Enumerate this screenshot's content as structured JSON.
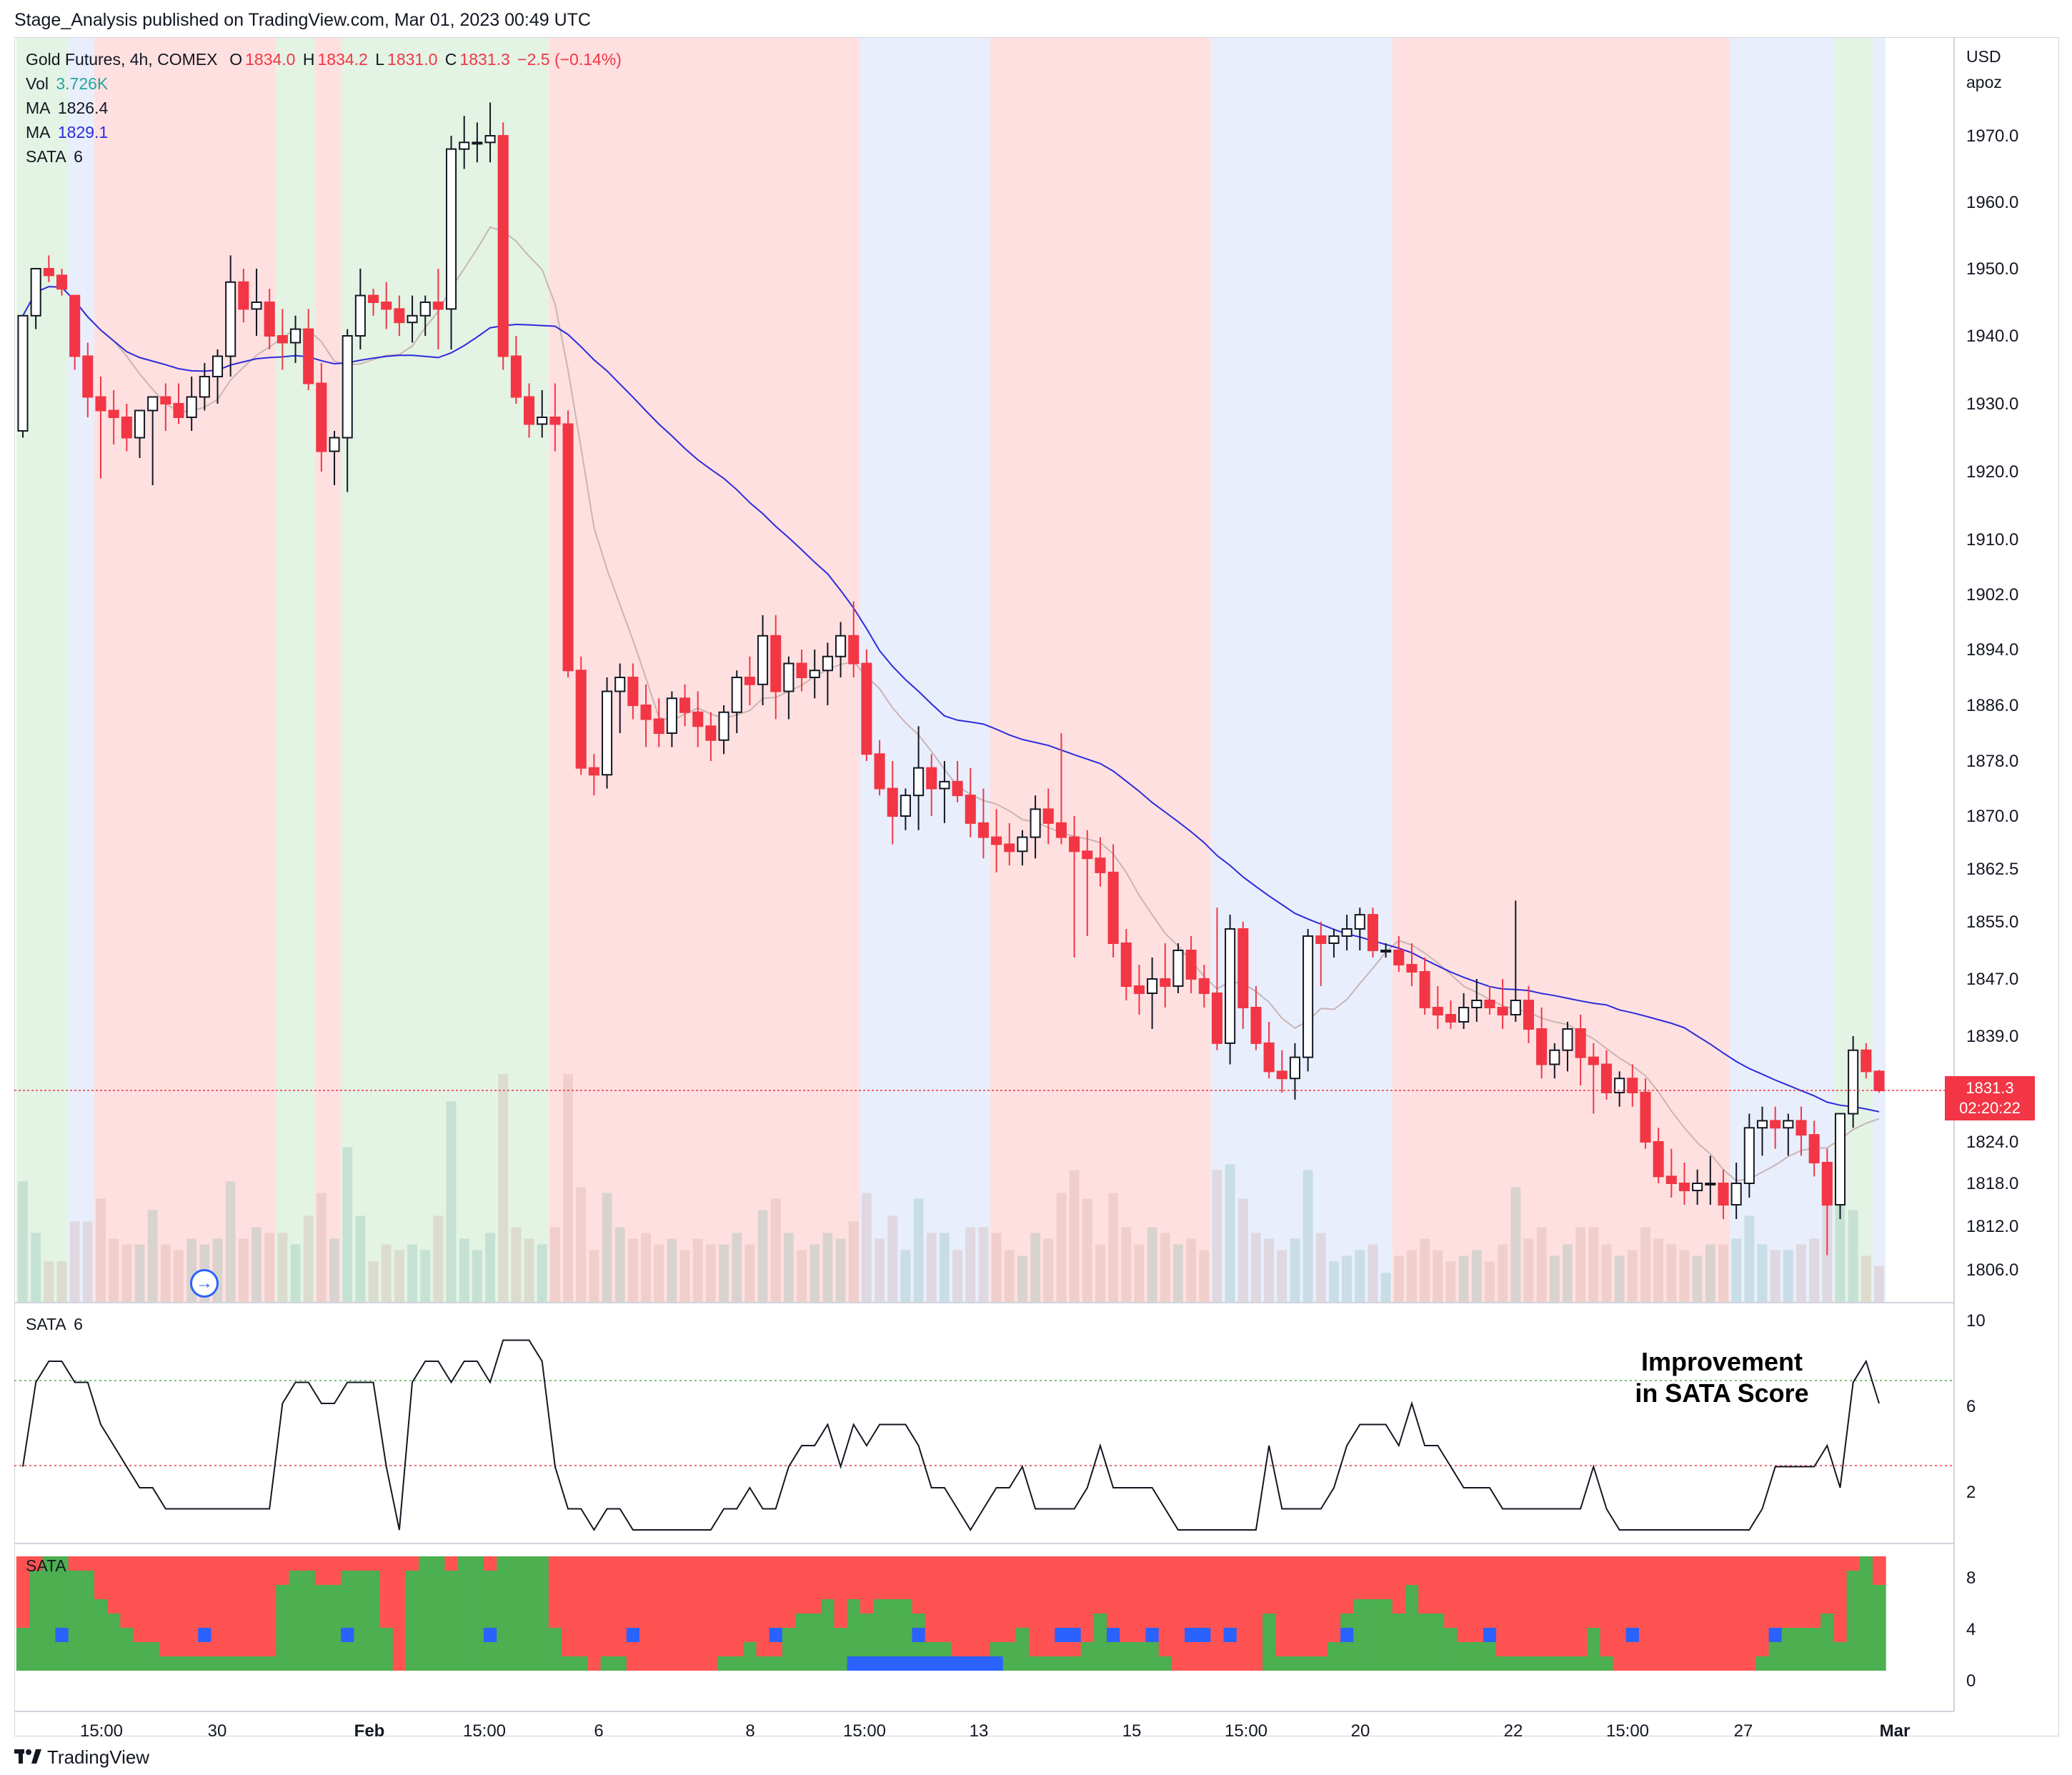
{
  "header": {
    "published_text": "Stage_Analysis published on TradingView.com, Mar 01, 2023 00:49 UTC"
  },
  "legend": {
    "symbol": "Gold Futures, 4h, COMEX",
    "o_label": "O",
    "o_value": "1834.0",
    "h_label": "H",
    "h_value": "1834.2",
    "l_label": "L",
    "l_value": "1831.0",
    "c_label": "C",
    "c_value": "1831.3",
    "change": "−2.5 (−0.14%)",
    "vol_label": "Vol",
    "vol_value": "3.726K",
    "ma1_label": "MA",
    "ma1_value": "1826.4",
    "ma2_label": "MA",
    "ma2_value": "1829.1",
    "sata_label": "SATA",
    "sata_value": "6"
  },
  "price_axis": {
    "currency": "USD",
    "mode": "apoz",
    "ticks": [
      "1970.0",
      "1960.0",
      "1950.0",
      "1940.0",
      "1930.0",
      "1920.0",
      "1910.0",
      "1902.0",
      "1894.0",
      "1886.0",
      "1878.0",
      "1870.0",
      "1862.5",
      "1855.0",
      "1847.0",
      "1839.0",
      "1824.0",
      "1818.0",
      "1812.0",
      "1806.0"
    ],
    "last_price": "1831.3",
    "countdown": "02:20:22"
  },
  "sata_pane": {
    "label": "SATA",
    "value": "6",
    "ticks": [
      "10",
      "6",
      "2"
    ],
    "annotation_line1": "Improvement",
    "annotation_line2": "in SATA Score"
  },
  "sata_bars_pane": {
    "label": "SATA",
    "ticks": [
      "8",
      "4",
      "0"
    ]
  },
  "time_axis": {
    "ticks": [
      "15:00",
      "30",
      "Feb",
      "15:00",
      "6",
      "8",
      "15:00",
      "13",
      "15",
      "15:00",
      "20",
      "22",
      "15:00",
      "27",
      "Mar"
    ]
  },
  "footer": {
    "brand": "TradingView"
  },
  "colors": {
    "up": "#ffffff",
    "down": "#f23645",
    "ma_fast": "#c8b5b5",
    "ma_slow": "#2b2bdc",
    "bg_green": "#e3f3e4",
    "bg_red": "#ffe0e0",
    "bg_blue": "#e8eefc",
    "sata_red": "#ff5252",
    "sata_green": "#4caf50",
    "sata_blue": "#2962ff"
  },
  "chart_data": {
    "type": "candlestick",
    "title": "Gold Futures, 4h, COMEX",
    "ylim": [
      1802,
      1978
    ],
    "candles": [
      [
        1926,
        1943,
        1925,
        1943
      ],
      [
        1943,
        1950,
        1941,
        1950
      ],
      [
        1950,
        1952,
        1948,
        1949
      ],
      [
        1949,
        1950,
        1946,
        1947
      ],
      [
        1946,
        1946,
        1935,
        1937
      ],
      [
        1937,
        1939,
        1928,
        1931
      ],
      [
        1931,
        1934,
        1919,
        1929
      ],
      [
        1929,
        1932,
        1924,
        1928
      ],
      [
        1928,
        1930,
        1923,
        1925
      ],
      [
        1925,
        1929,
        1922,
        1929
      ],
      [
        1929,
        1931,
        1918,
        1931
      ],
      [
        1931,
        1933,
        1926,
        1930
      ],
      [
        1930,
        1933,
        1927,
        1928
      ],
      [
        1928,
        1934,
        1926,
        1931
      ],
      [
        1931,
        1936,
        1929,
        1934
      ],
      [
        1934,
        1938,
        1930,
        1937
      ],
      [
        1937,
        1952,
        1934,
        1948
      ],
      [
        1948,
        1950,
        1942,
        1944
      ],
      [
        1944,
        1950,
        1940,
        1945
      ],
      [
        1945,
        1947,
        1938,
        1940
      ],
      [
        1940,
        1944,
        1935,
        1939
      ],
      [
        1939,
        1943,
        1936,
        1941
      ],
      [
        1941,
        1944,
        1932,
        1933
      ],
      [
        1933,
        1936,
        1920,
        1923
      ],
      [
        1923,
        1926,
        1918,
        1925
      ],
      [
        1925,
        1941,
        1917,
        1940
      ],
      [
        1940,
        1950,
        1938,
        1946
      ],
      [
        1946,
        1947,
        1943,
        1945
      ],
      [
        1945,
        1948,
        1941,
        1944
      ],
      [
        1944,
        1946,
        1940,
        1942
      ],
      [
        1942,
        1946,
        1939,
        1943
      ],
      [
        1943,
        1946,
        1940,
        1945
      ],
      [
        1945,
        1950,
        1938,
        1944
      ],
      [
        1944,
        1970,
        1938,
        1968
      ],
      [
        1968,
        1973,
        1965,
        1969
      ],
      [
        1969,
        1972,
        1966,
        1969
      ],
      [
        1969,
        1975,
        1966,
        1970
      ],
      [
        1970,
        1972,
        1935,
        1937
      ],
      [
        1937,
        1940,
        1930,
        1931
      ],
      [
        1931,
        1933,
        1925,
        1927
      ],
      [
        1927,
        1932,
        1925,
        1928
      ],
      [
        1928,
        1933,
        1923,
        1927
      ],
      [
        1927,
        1929,
        1890,
        1891
      ],
      [
        1891,
        1893,
        1876,
        1877
      ],
      [
        1877,
        1879,
        1873,
        1876
      ],
      [
        1876,
        1890,
        1874,
        1888
      ],
      [
        1888,
        1892,
        1882,
        1890
      ],
      [
        1890,
        1892,
        1884,
        1886
      ],
      [
        1886,
        1889,
        1880,
        1884
      ],
      [
        1884,
        1887,
        1880,
        1882
      ],
      [
        1882,
        1888,
        1880,
        1887
      ],
      [
        1887,
        1889,
        1883,
        1885
      ],
      [
        1885,
        1888,
        1880,
        1883
      ],
      [
        1883,
        1885,
        1878,
        1881
      ],
      [
        1881,
        1886,
        1879,
        1885
      ],
      [
        1885,
        1891,
        1882,
        1890
      ],
      [
        1890,
        1893,
        1886,
        1889
      ],
      [
        1889,
        1899,
        1886,
        1896
      ],
      [
        1896,
        1899,
        1884,
        1888
      ],
      [
        1888,
        1893,
        1884,
        1892
      ],
      [
        1892,
        1894,
        1888,
        1890
      ],
      [
        1890,
        1894,
        1887,
        1891
      ],
      [
        1891,
        1895,
        1886,
        1893
      ],
      [
        1893,
        1898,
        1890,
        1896
      ],
      [
        1896,
        1901,
        1890,
        1892
      ],
      [
        1892,
        1894,
        1878,
        1879
      ],
      [
        1879,
        1881,
        1873,
        1874
      ],
      [
        1874,
        1878,
        1866,
        1870
      ],
      [
        1870,
        1874,
        1868,
        1873
      ],
      [
        1873,
        1883,
        1868,
        1877
      ],
      [
        1877,
        1879,
        1870,
        1874
      ],
      [
        1874,
        1878,
        1869,
        1875
      ],
      [
        1875,
        1878,
        1872,
        1873
      ],
      [
        1873,
        1877,
        1867,
        1869
      ],
      [
        1869,
        1874,
        1864,
        1867
      ],
      [
        1867,
        1871,
        1862,
        1866
      ],
      [
        1866,
        1869,
        1863,
        1865
      ],
      [
        1865,
        1868,
        1863,
        1867
      ],
      [
        1867,
        1873,
        1864,
        1871
      ],
      [
        1871,
        1874,
        1866,
        1869
      ],
      [
        1869,
        1882,
        1866,
        1867
      ],
      [
        1867,
        1870,
        1850,
        1865
      ],
      [
        1865,
        1868,
        1853,
        1864
      ],
      [
        1864,
        1867,
        1860,
        1862
      ],
      [
        1862,
        1866,
        1850,
        1852
      ],
      [
        1852,
        1854,
        1844,
        1846
      ],
      [
        1846,
        1849,
        1842,
        1845
      ],
      [
        1845,
        1850,
        1840,
        1847
      ],
      [
        1847,
        1852,
        1843,
        1846
      ],
      [
        1846,
        1852,
        1845,
        1851
      ],
      [
        1851,
        1853,
        1845,
        1847
      ],
      [
        1847,
        1849,
        1843,
        1845
      ],
      [
        1845,
        1857,
        1837,
        1838
      ],
      [
        1838,
        1856,
        1835,
        1854
      ],
      [
        1854,
        1855,
        1840,
        1843
      ],
      [
        1843,
        1846,
        1837,
        1838
      ],
      [
        1838,
        1841,
        1833,
        1834
      ],
      [
        1834,
        1837,
        1831,
        1833
      ],
      [
        1833,
        1838,
        1830,
        1836
      ],
      [
        1836,
        1854,
        1834,
        1853
      ],
      [
        1853,
        1855,
        1846,
        1852
      ],
      [
        1852,
        1854,
        1850,
        1853
      ],
      [
        1853,
        1856,
        1851,
        1854
      ],
      [
        1854,
        1857,
        1851,
        1856
      ],
      [
        1856,
        1857,
        1850,
        1851
      ],
      [
        1851,
        1852,
        1850,
        1851
      ],
      [
        1851,
        1853,
        1848,
        1849
      ],
      [
        1849,
        1852,
        1846,
        1848
      ],
      [
        1848,
        1850,
        1842,
        1843
      ],
      [
        1843,
        1846,
        1840,
        1842
      ],
      [
        1842,
        1844,
        1840,
        1841
      ],
      [
        1841,
        1845,
        1840,
        1843
      ],
      [
        1843,
        1847,
        1841,
        1844
      ],
      [
        1844,
        1846,
        1842,
        1843
      ],
      [
        1843,
        1847,
        1840,
        1842
      ],
      [
        1842,
        1858,
        1841,
        1844
      ],
      [
        1844,
        1846,
        1838,
        1840
      ],
      [
        1840,
        1843,
        1833,
        1835
      ],
      [
        1835,
        1838,
        1833,
        1837
      ],
      [
        1837,
        1841,
        1834,
        1840
      ],
      [
        1840,
        1842,
        1832,
        1836
      ],
      [
        1836,
        1838,
        1828,
        1835
      ],
      [
        1835,
        1837,
        1830,
        1831
      ],
      [
        1831,
        1834,
        1829,
        1833
      ],
      [
        1833,
        1835,
        1829,
        1831
      ],
      [
        1831,
        1833,
        1823,
        1824
      ],
      [
        1824,
        1826,
        1818,
        1819
      ],
      [
        1819,
        1823,
        1816,
        1818
      ],
      [
        1818,
        1821,
        1815,
        1817
      ],
      [
        1817,
        1820,
        1815,
        1818
      ],
      [
        1818,
        1822,
        1815,
        1818
      ],
      [
        1818,
        1820,
        1813,
        1815
      ],
      [
        1815,
        1821,
        1813,
        1818
      ],
      [
        1818,
        1828,
        1816,
        1826
      ],
      [
        1826,
        1829,
        1822,
        1827
      ],
      [
        1827,
        1829,
        1823,
        1826
      ],
      [
        1826,
        1828,
        1822,
        1827
      ],
      [
        1827,
        1829,
        1822,
        1825
      ],
      [
        1825,
        1827,
        1819,
        1821
      ],
      [
        1821,
        1823,
        1808,
        1815
      ],
      [
        1815,
        1828,
        1813,
        1828
      ],
      [
        1828,
        1839,
        1826,
        1837
      ],
      [
        1837,
        1838,
        1833,
        1834
      ],
      [
        1834,
        1834.2,
        1831,
        1831.3
      ]
    ],
    "sata_series": [
      3,
      7,
      8,
      8,
      7,
      7,
      5,
      4,
      3,
      2,
      2,
      1,
      1,
      1,
      1,
      1,
      1,
      1,
      1,
      1,
      6,
      7,
      7,
      6,
      6,
      7,
      7,
      7,
      3,
      0,
      7,
      8,
      8,
      7,
      8,
      8,
      7,
      9,
      9,
      9,
      8,
      3,
      1,
      1,
      0,
      1,
      1,
      0,
      0,
      0,
      0,
      0,
      0,
      0,
      1,
      1,
      2,
      1,
      1,
      3,
      4,
      4,
      5,
      3,
      5,
      4,
      5,
      5,
      5,
      4,
      2,
      2,
      1,
      0,
      1,
      2,
      2,
      3,
      1,
      1,
      1,
      1,
      2,
      4,
      2,
      2,
      2,
      2,
      1,
      0,
      0,
      0,
      0,
      0,
      0,
      0,
      4,
      1,
      1,
      1,
      1,
      2,
      4,
      5,
      5,
      5,
      4,
      6,
      4,
      4,
      3,
      2,
      2,
      2,
      1,
      1,
      1,
      1,
      1,
      1,
      1,
      3,
      1,
      0,
      0,
      0,
      0,
      0,
      0,
      0,
      0,
      0,
      0,
      0,
      1,
      3,
      3,
      3,
      3,
      4,
      2,
      7,
      8,
      6,
      6
    ]
  }
}
